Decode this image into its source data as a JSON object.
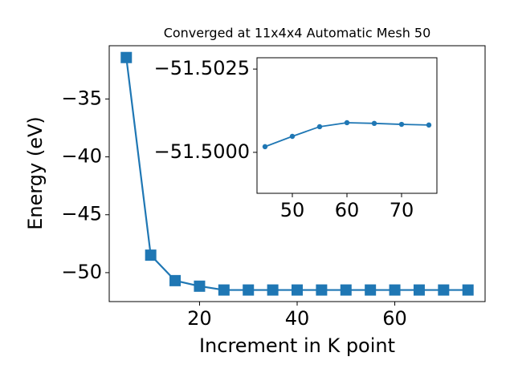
{
  "chart_data": [
    {
      "type": "line",
      "title": "Converged at 11x4x4 Automatic Mesh 50",
      "x_label": "Increment in K point",
      "y_label": "Energy (eV)",
      "x": [
        5,
        10,
        15,
        20,
        25,
        30,
        35,
        40,
        45,
        50,
        55,
        60,
        65,
        70,
        75
      ],
      "series": [
        {
          "color": "#1f77b4",
          "marker": "square",
          "values": [
            -31.42,
            -48.49,
            -50.69,
            -51.17,
            -51.5,
            -51.5,
            -51.5,
            -51.5,
            -51.5,
            -51.5,
            -51.5,
            -51.5,
            -51.5,
            -51.5,
            -51.5
          ]
        }
      ],
      "xlim": [
        1.5,
        78.5
      ],
      "ylim": [
        -52.5,
        -30.4
      ],
      "xticks": [
        20,
        40,
        60
      ],
      "yticks": [
        {
          "value": -50,
          "label": "−50"
        },
        {
          "value": -45,
          "label": "−45"
        },
        {
          "value": -40,
          "label": "−40"
        },
        {
          "value": -35,
          "label": "−35"
        }
      ]
    },
    {
      "type": "line",
      "x": [
        45,
        50,
        55,
        60,
        65,
        70,
        75
      ],
      "series": [
        {
          "color": "#1f77b4",
          "marker": "circle",
          "values": [
            -51.50017,
            -51.50048,
            -51.50077,
            -51.50089,
            -51.50087,
            -51.50084,
            -51.50082
          ]
        }
      ],
      "xlim": [
        43.53,
        76.47
      ],
      "ylim": [
        -51.49877,
        -51.50284
      ],
      "xticks": [
        50,
        60,
        70
      ],
      "yticks": [
        {
          "value": -51.5025,
          "label": "−51.5025"
        },
        {
          "value": -51.5,
          "label": "−51.5000"
        }
      ]
    }
  ]
}
